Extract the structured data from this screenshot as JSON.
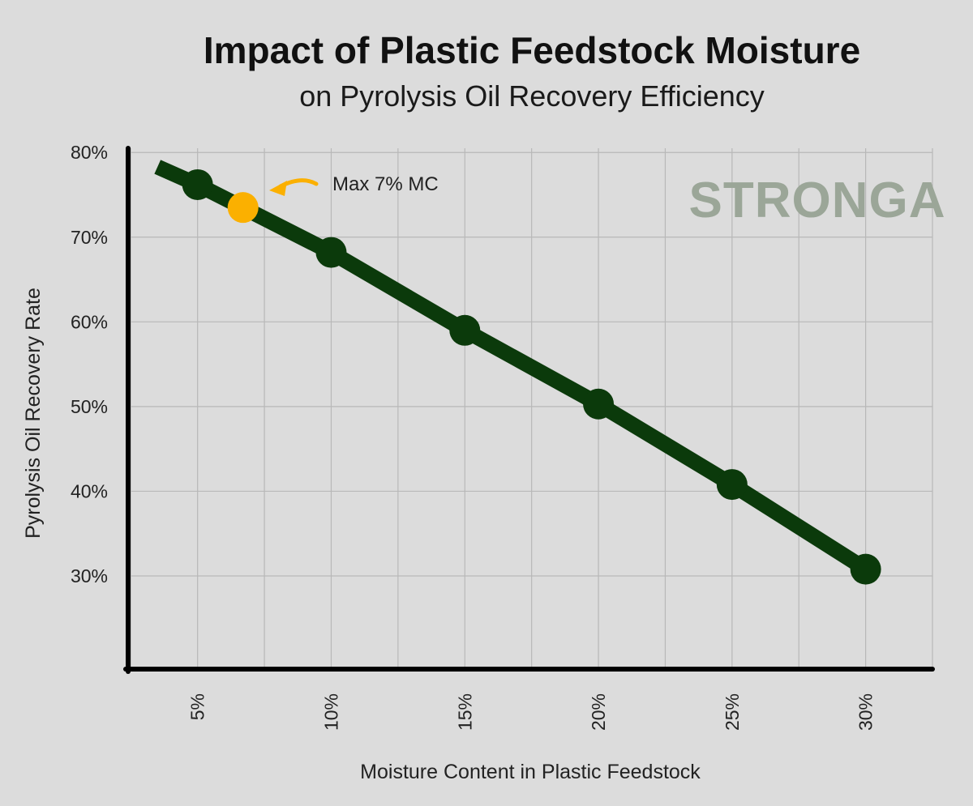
{
  "chart_data": {
    "type": "line",
    "title": "Impact of Plastic Feedstock Moisture",
    "subtitle": "on Pyrolysis Oil Recovery Efficiency",
    "xlabel": "Moisture Content in Plastic Feedstock",
    "ylabel": "Pyrolysis Oil Recovery Rate",
    "x_ticks": [
      "5%",
      "10%",
      "15%",
      "20%",
      "25%",
      "30%"
    ],
    "y_ticks": [
      "30%",
      "40%",
      "50%",
      "60%",
      "70%",
      "80%"
    ],
    "xlim": [
      2.4,
      32.5
    ],
    "ylim": [
      19,
      80.5
    ],
    "grid": true,
    "series": [
      {
        "color": "#0b3a0b",
        "line": [
          [
            3.5,
            78.3
          ],
          [
            5,
            76.2
          ],
          [
            10,
            68.2
          ],
          [
            15,
            59
          ],
          [
            20,
            50.3
          ],
          [
            25,
            40.8
          ],
          [
            30,
            30.8
          ]
        ],
        "markers": [
          {
            "x": 5,
            "y": 76.2
          },
          {
            "x": 10,
            "y": 68.2
          },
          {
            "x": 15,
            "y": 59
          },
          {
            "x": 20,
            "y": 50.3
          },
          {
            "x": 25,
            "y": 40.8
          },
          {
            "x": 30,
            "y": 30.8
          }
        ]
      }
    ],
    "highlight_point": {
      "x": 6.7,
      "y": 73.5,
      "color": "#fbb000"
    },
    "annotation": {
      "text": "Max 7% MC",
      "color": "#fbb000"
    },
    "watermark": {
      "text": "STRONGA",
      "color": "#9ba698"
    }
  }
}
